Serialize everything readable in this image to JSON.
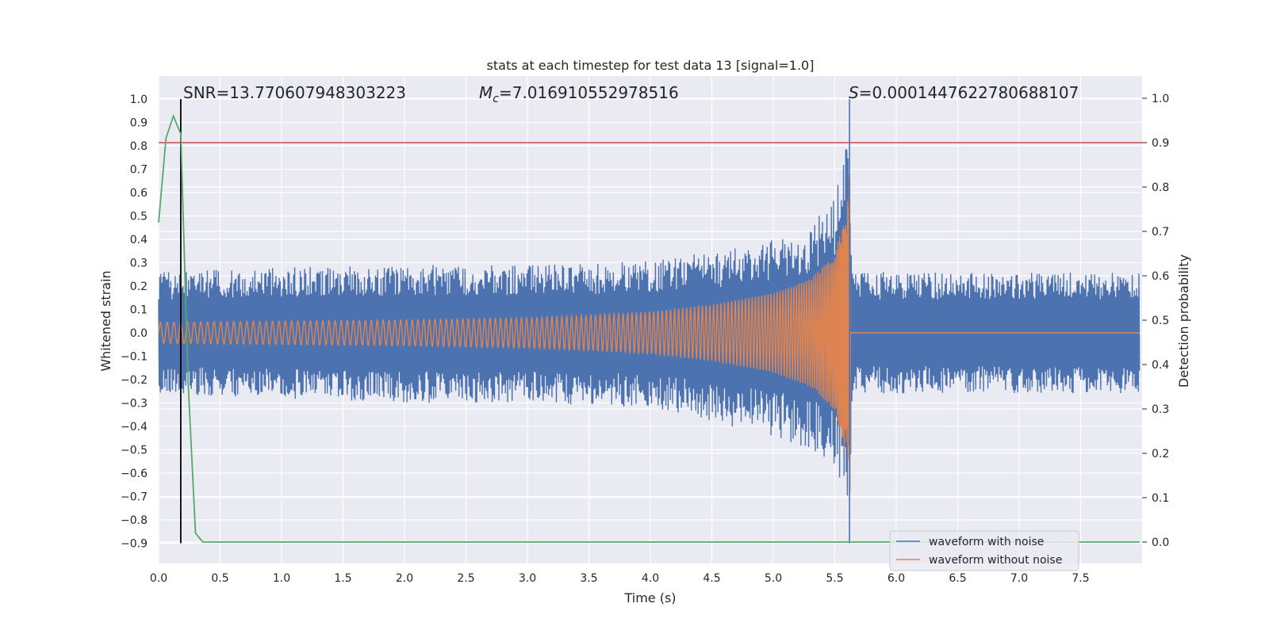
{
  "chart_data": {
    "type": "line",
    "title": "stats at each timestep for test data 13 [signal=1.0]",
    "xlabel": "Time (s)",
    "ylabel_left": "Whitened strain",
    "ylabel_right": "Detection probability",
    "xlim": [
      0.0,
      8.0
    ],
    "ylim_left": [
      -1.0,
      1.06
    ],
    "ylim_right": [
      -0.05,
      1.05
    ],
    "x_ticks": [
      0.0,
      0.5,
      1.0,
      1.5,
      2.0,
      2.5,
      3.0,
      3.5,
      4.0,
      4.5,
      5.0,
      5.5,
      6.0,
      6.5,
      7.0,
      7.5
    ],
    "x_tick_labels": [
      "0.0",
      "0.5",
      "1.0",
      "1.5",
      "2.0",
      "2.5",
      "3.0",
      "3.5",
      "4.0",
      "4.5",
      "5.0",
      "5.5",
      "6.0",
      "6.5",
      "7.0",
      "7.5"
    ],
    "y_left_ticks": [
      1.0,
      0.9,
      0.8,
      0.7,
      0.6,
      0.5,
      0.4,
      0.3,
      0.2,
      0.1,
      0.0,
      -0.1,
      -0.2,
      -0.3,
      -0.4,
      -0.5,
      -0.6,
      -0.7,
      -0.8,
      -0.9
    ],
    "y_left_tick_labels": [
      "1.0",
      "0.9",
      "0.8",
      "0.7",
      "0.6",
      "0.5",
      "0.4",
      "0.3",
      "0.2",
      "0.1",
      "0.0",
      "−0.1",
      "−0.2",
      "−0.3",
      "−0.4",
      "−0.5",
      "−0.6",
      "−0.7",
      "−0.8",
      "−0.9"
    ],
    "y_right_ticks": [
      1.0,
      0.9,
      0.8,
      0.7,
      0.6,
      0.5,
      0.4,
      0.3,
      0.2,
      0.1,
      0.0
    ],
    "y_right_tick_labels": [
      "1.0",
      "0.9",
      "0.8",
      "0.7",
      "0.6",
      "0.5",
      "0.4",
      "0.3",
      "0.2",
      "0.1",
      "0.0"
    ],
    "grid": true,
    "annotations": {
      "snr": "SNR=13.770607948303223",
      "mc_symbol": "M",
      "mc_sub": "c",
      "mc_value": "=7.016910552978516",
      "s_symbol": "S",
      "s_value": "=0.0001447622780688107"
    },
    "legend": {
      "placement": "lower-right",
      "entries": [
        "waveform with noise",
        "waveform without noise"
      ]
    },
    "series": [
      {
        "name": "waveform with noise",
        "color": "#4c72b0",
        "axis": "left",
        "description_envelope": {
          "x": [
            0.0,
            1.0,
            2.0,
            3.0,
            4.0,
            4.5,
            5.0,
            5.3,
            5.5,
            5.6,
            5.62,
            5.64,
            6.0,
            7.0,
            8.0
          ],
          "upper": [
            0.26,
            0.28,
            0.29,
            0.29,
            0.31,
            0.35,
            0.4,
            0.45,
            0.6,
            0.85,
            1.0,
            0.26,
            0.26,
            0.26,
            0.26
          ],
          "lower": [
            -0.26,
            -0.28,
            -0.3,
            -0.3,
            -0.32,
            -0.38,
            -0.45,
            -0.5,
            -0.57,
            -0.75,
            -0.9,
            -0.26,
            -0.26,
            -0.26,
            -0.26
          ]
        }
      },
      {
        "name": "waveform without noise",
        "color": "#dd8452",
        "axis": "left",
        "description_envelope": {
          "x": [
            0.0,
            1.0,
            2.0,
            3.0,
            3.5,
            4.0,
            4.5,
            5.0,
            5.3,
            5.5,
            5.6,
            5.63,
            5.64,
            8.0
          ],
          "amplitude": [
            0.045,
            0.05,
            0.055,
            0.065,
            0.075,
            0.09,
            0.12,
            0.17,
            0.23,
            0.33,
            0.55,
            0.8,
            0.005,
            0.005
          ]
        }
      },
      {
        "name": "",
        "color": "#55a868",
        "axis": "right",
        "x": [
          0.0,
          0.06,
          0.12,
          0.18,
          0.24,
          0.3,
          0.36,
          0.4,
          8.0
        ],
        "y": [
          0.72,
          0.91,
          0.96,
          0.92,
          0.36,
          0.02,
          0.0,
          0.0,
          0.0
        ]
      }
    ],
    "threshold_line": {
      "axis": "right",
      "y": 0.9,
      "color": "#c44e52"
    },
    "vertical_line": {
      "axis": "left",
      "x": 0.18,
      "ymin": -0.9,
      "ymax": 1.0,
      "color": "#000000"
    },
    "merger_spike": {
      "x": 5.62,
      "ymin": -0.9,
      "ymax": 1.0
    }
  }
}
